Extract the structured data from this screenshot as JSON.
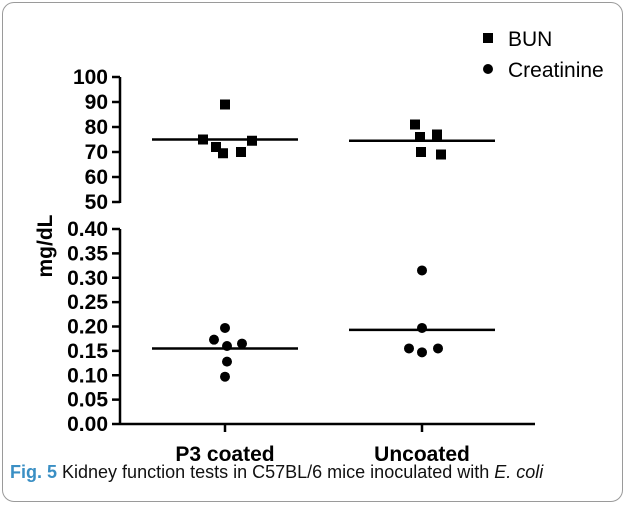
{
  "chart_data": {
    "type": "scatter",
    "ylabel": "mg/dL",
    "categories": [
      "P3 coated",
      "Uncoated"
    ],
    "legend": {
      "placement": "top-right",
      "entries": [
        {
          "name": "BUN",
          "marker": "square"
        },
        {
          "name": "Creatinine",
          "marker": "circle"
        }
      ]
    },
    "upper_axis": {
      "range": [
        50,
        100
      ],
      "ticks": [
        "50",
        "60",
        "70",
        "80",
        "90",
        "100"
      ],
      "tick_values": [
        50,
        60,
        70,
        80,
        90,
        100
      ],
      "series": "BUN",
      "points": [
        {
          "category": "P3 coated",
          "values": [
            89,
            75,
            74.5,
            72,
            69.5,
            70
          ]
        },
        {
          "category": "Uncoated",
          "values": [
            81,
            76,
            77,
            70,
            69
          ]
        }
      ],
      "means": [
        75,
        74.5
      ]
    },
    "lower_axis": {
      "range": [
        0,
        0.4
      ],
      "ticks": [
        "0.00",
        "0.05",
        "0.10",
        "0.15",
        "0.20",
        "0.25",
        "0.30",
        "0.35",
        "0.40"
      ],
      "tick_values": [
        0,
        0.05,
        0.1,
        0.15,
        0.2,
        0.25,
        0.3,
        0.35,
        0.4
      ],
      "series": "Creatinine",
      "points": [
        {
          "category": "P3 coated",
          "values": [
            0.197,
            0.173,
            0.165,
            0.16,
            0.128,
            0.097
          ]
        },
        {
          "category": "Uncoated",
          "values": [
            0.315,
            0.197,
            0.155,
            0.147,
            0.155
          ]
        }
      ],
      "means": [
        0.155,
        0.193
      ]
    }
  },
  "caption": {
    "label": "Fig. 5",
    "text_before": " Kidney function tests in C57BL/6 mice inoculated with ",
    "italic": "E. coli"
  }
}
